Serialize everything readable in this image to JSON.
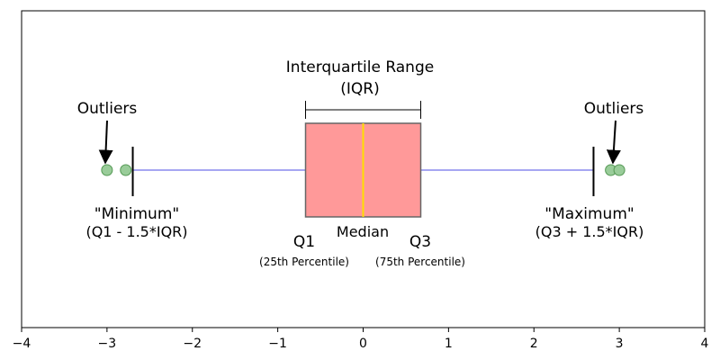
{
  "chart_data": {
    "type": "boxplot",
    "title": "",
    "xlim": [
      -4,
      4
    ],
    "ticks": [
      -4,
      -3,
      -2,
      -1,
      0,
      1,
      2,
      3,
      4
    ],
    "tick_labels": [
      "−4",
      "−3",
      "−2",
      "−1",
      "0",
      "1",
      "2",
      "3",
      "4"
    ],
    "box": {
      "q1": -0.6745,
      "median": 0,
      "q3": 0.6745,
      "whisker_low": -2.698,
      "whisker_high": 2.698
    },
    "outliers": [
      -3.0,
      -2.78,
      2.9,
      3.0
    ],
    "colors": {
      "box_fill": "#ff9999",
      "box_edge": "#666666",
      "median_line": "#ffdd00",
      "whisker_line": "#8888ee",
      "outlier_fill": "#99cc99",
      "outlier_edge": "#559955"
    }
  },
  "labels": {
    "iqr_title": "Interquartile Range",
    "iqr_abbrev": "(IQR)",
    "outliers_left": "Outliers",
    "outliers_right": "Outliers",
    "minimum": "\"Minimum\"",
    "minimum_formula": "(Q1 - 1.5*IQR)",
    "maximum": "\"Maximum\"",
    "maximum_formula": "(Q3 + 1.5*IQR)",
    "q1": "Q1",
    "q1_desc": "(25th Percentile)",
    "median": "Median",
    "q3": "Q3",
    "q3_desc": "(75th Percentile)"
  }
}
